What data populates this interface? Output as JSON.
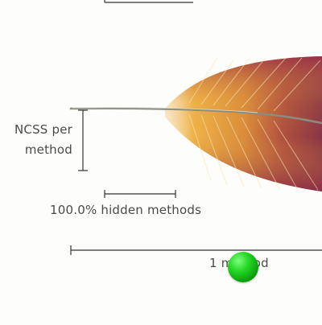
{
  "legend": {
    "metric_label_line1": "NCSS per",
    "metric_label_line2": "method",
    "hidden_methods_label": "100.0% hidden methods",
    "methods_count_label": "1 method"
  },
  "colors": {
    "feather_gold": "#e8a43a",
    "feather_red": "#8e2f47",
    "quill": "#8a8a80",
    "ruler_line": "#333333",
    "marker_green": "#1fcc1f"
  }
}
